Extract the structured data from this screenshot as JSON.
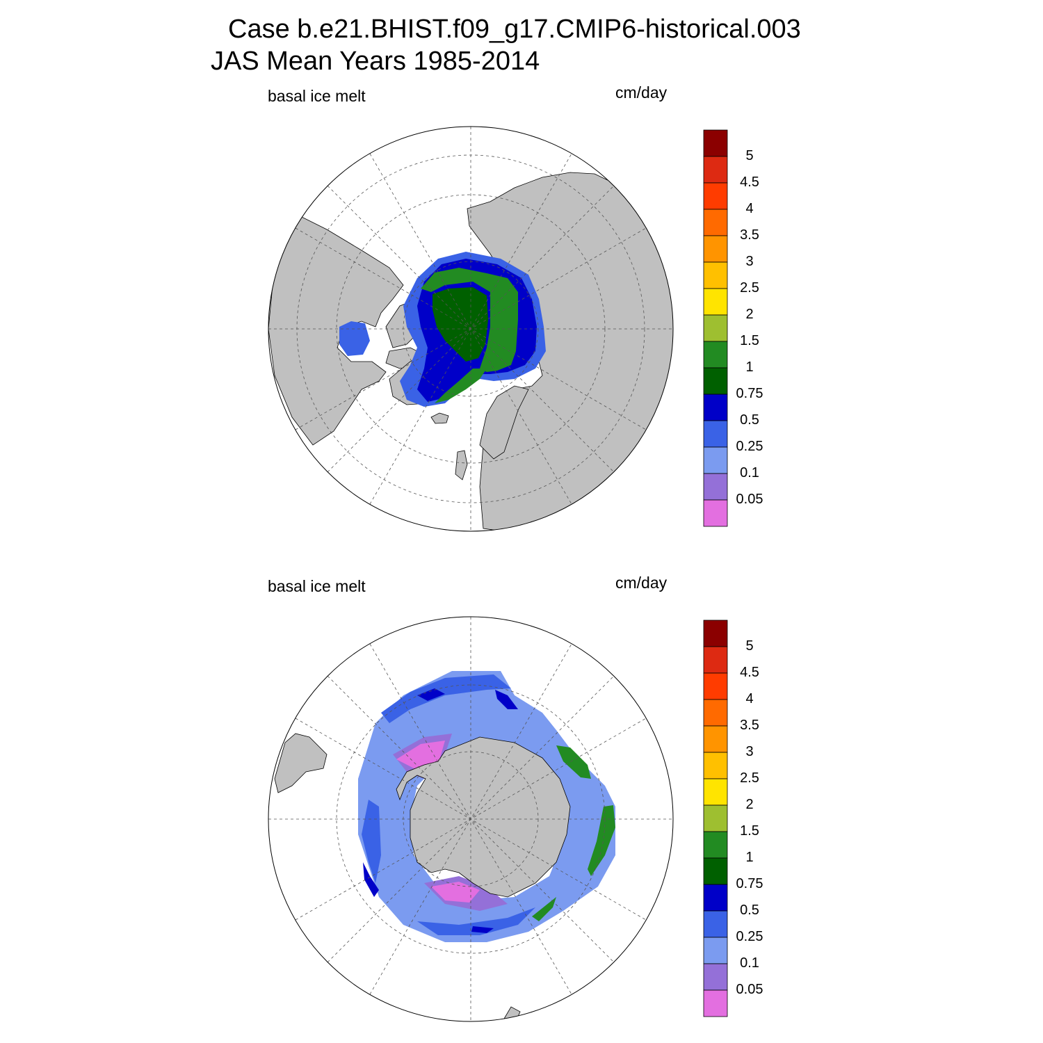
{
  "title_line1": "Case b.e21.BHIST.f09_g17.CMIP6-historical.003",
  "title_line2": "JAS Mean   Years 1985-2014",
  "panels": [
    {
      "id": "north",
      "variable": "basal ice melt",
      "units": "cm/day"
    },
    {
      "id": "south",
      "variable": "basal ice melt",
      "units": "cm/day"
    }
  ],
  "colorbar": {
    "labels": [
      "5",
      "4.5",
      "4",
      "3.5",
      "3",
      "2.5",
      "2",
      "1.5",
      "1",
      "0.75",
      "0.5",
      "0.25",
      "0.1",
      "0.05"
    ],
    "colors": [
      "#8b0000",
      "#dd2a12",
      "#ff3c00",
      "#ff6a00",
      "#ff9400",
      "#ffc000",
      "#ffe400",
      "#9ebf30",
      "#228b22",
      "#006000",
      "#0000c8",
      "#3a62e6",
      "#7b9bf0",
      "#9470d8",
      "#e36fe0"
    ]
  },
  "colors": {
    "land": "#c0c0c0",
    "ocean": "#ffffff",
    "grid": "#555555"
  }
}
